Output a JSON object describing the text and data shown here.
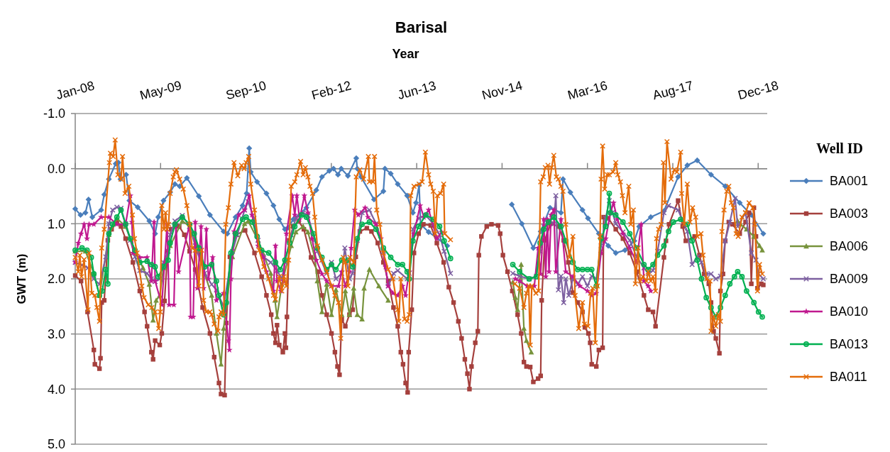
{
  "chart_data": {
    "type": "line",
    "title": "Barisal",
    "xlabel": "Year",
    "ylabel": "GWT (m)",
    "legend_title": "Well ID",
    "legend": "right",
    "grid": "y",
    "xlim": [
      "2008-01-01",
      "2019-02-05"
    ],
    "xticks": [
      {
        "value": "2008-01-01",
        "label": "Jan-08"
      },
      {
        "value": "2009-05-15",
        "label": "May-09"
      },
      {
        "value": "2010-09-27",
        "label": "Sep-10"
      },
      {
        "value": "2012-02-09",
        "label": "Feb-12"
      },
      {
        "value": "2013-06-23",
        "label": "Jun-13"
      },
      {
        "value": "2014-11-05",
        "label": "Nov-14"
      },
      {
        "value": "2016-03-19",
        "label": "Mar-16"
      },
      {
        "value": "2017-08-01",
        "label": "Aug-17"
      },
      {
        "value": "2018-12-14",
        "label": "Dec-18"
      }
    ],
    "ylim": [
      5,
      -1
    ],
    "yticks": [
      {
        "value": -1,
        "label": "-1.0"
      },
      {
        "value": 0,
        "label": "0.0"
      },
      {
        "value": 1,
        "label": "1.0"
      },
      {
        "value": 2,
        "label": "2.0"
      },
      {
        "value": 3,
        "label": "3.0"
      },
      {
        "value": 4,
        "label": "4.0"
      },
      {
        "value": 5,
        "label": "5.0"
      }
    ],
    "series": [
      {
        "name": "BA001",
        "color": "#4a7ebb",
        "marker": "diamond",
        "x": [
          "2008-01-01",
          "2008-02-01",
          "2008-03-01",
          "2008-03-19",
          "2008-04-10",
          "2008-06-01",
          "2008-06-19",
          "2008-07-16",
          "2008-08-25",
          "2008-09-10",
          "2008-09-22",
          "2008-10-25",
          "2008-11-13",
          "2009-01-01",
          "2009-03-10",
          "2009-04-13",
          "2009-05-01",
          "2009-06-01",
          "2009-07-10",
          "2009-08-07",
          "2009-09-04",
          "2009-10-16",
          "2009-12-25",
          "2010-02-28",
          "2010-05-19",
          "2010-06-10",
          "2010-07-28",
          "2010-09-07",
          "2010-10-01",
          "2010-10-16",
          "2010-10-25",
          "2010-12-01",
          "2011-01-25",
          "2011-03-07",
          "2011-04-10",
          "2011-05-13",
          "2011-06-01",
          "2011-07-01",
          "2011-09-16",
          "2011-11-13",
          "2011-12-16",
          "2012-01-28",
          "2012-02-22",
          "2012-03-19",
          "2012-04-07",
          "2012-05-16",
          "2012-07-04",
          "2012-07-10",
          "2012-08-01",
          "2012-10-16",
          "2012-12-10",
          "2012-12-19",
          "2013-01-22",
          "2013-03-04",
          "2013-04-28",
          "2013-06-01",
          "2013-06-19",
          "2013-07-07",
          "2013-07-16",
          "2013-09-01",
          "2013-12-19",
          "2014-06-01",
          "2015-01-01",
          "2015-03-01",
          "2015-05-07",
          "2015-06-19",
          "2015-08-13",
          "2015-10-16",
          "2015-10-28",
          "2015-12-10",
          "2016-02-19",
          "2016-03-22",
          "2016-05-25",
          "2016-07-19",
          "2016-09-01",
          "2016-10-25",
          "2016-12-19",
          "2017-01-16",
          "2017-03-25",
          "2017-06-10",
          "2017-09-01",
          "2017-10-25",
          "2017-12-22",
          "2018-03-13",
          "2018-06-04",
          "2018-08-28",
          "2018-11-04",
          "2019-01-13"
        ],
        "values": [
          0.73,
          0.84,
          0.8,
          0.56,
          0.88,
          0.75,
          0.47,
          0.19,
          -0.09,
          -0.11,
          0.19,
          0.11,
          0.58,
          0.7,
          0.95,
          1.18,
          0.88,
          0.58,
          0.43,
          0.28,
          0.32,
          0.17,
          0.5,
          0.84,
          1.14,
          1.18,
          0.88,
          0.67,
          0.45,
          -0.37,
          0.06,
          0.24,
          0.45,
          0.67,
          0.92,
          1.1,
          1.07,
          0.92,
          0.71,
          0.39,
          0.15,
          0.04,
          0.0,
          0.11,
          0.0,
          0.13,
          -0.19,
          0.0,
          0.15,
          0.56,
          0.41,
          0.0,
          0.09,
          0.28,
          0.49,
          0.8,
          0.62,
          0.3,
          1.01,
          1.15,
          1.4,
          null,
          0.65,
          1.0,
          1.44,
          1.14,
          0.71,
          0.8,
          0.19,
          0.43,
          0.75,
          0.9,
          1.18,
          1.4,
          1.53,
          1.48,
          1.31,
          1.05,
          0.88,
          0.77,
          0.15,
          -0.06,
          -0.15,
          0.11,
          0.32,
          0.62,
          0.84,
          1.18
        ]
      },
      {
        "name": "BA003",
        "color": "#a5403d",
        "marker": "square",
        "x": [
          "2008-01-01",
          "2008-02-04",
          "2008-03-13",
          "2008-04-19",
          "2008-04-25",
          "2008-05-22",
          "2008-05-28",
          "2008-06-04",
          "2008-06-19",
          "2008-07-10",
          "2008-08-01",
          "2008-09-01",
          "2008-09-25",
          "2008-10-22",
          "2008-12-04",
          "2009-01-13",
          "2009-02-10",
          "2009-02-25",
          "2009-03-22",
          "2009-04-01",
          "2009-04-13",
          "2009-05-10",
          "2009-05-22",
          "2009-06-07",
          "2009-06-25",
          "2009-07-16",
          "2009-09-01",
          "2009-10-01",
          "2009-11-01",
          "2009-12-04",
          "2010-01-16",
          "2010-02-28",
          "2010-03-25",
          "2010-04-22",
          "2010-05-04",
          "2010-05-25",
          "2010-06-04",
          "2010-06-25",
          "2010-08-01",
          "2010-09-22",
          "2010-11-16",
          "2010-12-28",
          "2011-01-25",
          "2011-02-22",
          "2011-03-07",
          "2011-03-19",
          "2011-03-28",
          "2011-04-10",
          "2011-05-01",
          "2011-05-13",
          "2011-05-19",
          "2011-05-25",
          "2011-06-07",
          "2011-07-01",
          "2011-08-01",
          "2011-09-01",
          "2011-10-13",
          "2011-11-22",
          "2011-12-16",
          "2012-01-13",
          "2012-02-10",
          "2012-03-01",
          "2012-03-16",
          "2012-03-28",
          "2012-04-10",
          "2012-05-01",
          "2012-05-25",
          "2012-06-13",
          "2012-07-01",
          "2012-07-25",
          "2012-09-04",
          "2012-10-01",
          "2012-11-07",
          "2012-12-10",
          "2013-01-07",
          "2013-02-07",
          "2013-03-04",
          "2013-03-22",
          "2013-04-04",
          "2013-04-19",
          "2013-05-01",
          "2013-05-07",
          "2013-05-25",
          "2013-06-07",
          "2013-07-04",
          "2013-08-01",
          "2013-09-13",
          "2013-10-19",
          "2013-11-28",
          "2013-12-28",
          "2014-01-25",
          "2014-02-22",
          "2014-03-13",
          "2014-04-01",
          "2014-04-16",
          "2014-04-28",
          "2014-05-10",
          "2014-06-01",
          "2014-06-16",
          "2014-06-22",
          "2014-07-07",
          "2014-08-07",
          "2014-09-04",
          "2014-10-13",
          "2014-10-25",
          "2014-11-10",
          "2014-12-07",
          "2015-01-04",
          "2015-02-04",
          "2015-02-25",
          "2015-03-13",
          "2015-03-28",
          "2015-04-19",
          "2015-05-07",
          "2015-06-04",
          "2015-06-19",
          "2015-06-25",
          "2015-07-13",
          "2015-08-16",
          "2015-10-01",
          "2015-11-01",
          "2015-11-28",
          "2015-12-25",
          "2016-01-22",
          "2016-02-19",
          "2016-03-04",
          "2016-03-25",
          "2016-04-04",
          "2016-04-13",
          "2016-05-10",
          "2016-05-25",
          "2016-06-16",
          "2016-06-22",
          "2016-07-19",
          "2016-09-01",
          "2016-10-13",
          "2016-11-22",
          "2017-01-01",
          "2017-02-13",
          "2017-03-10",
          "2017-04-07",
          "2017-04-22",
          "2017-06-10",
          "2017-06-22",
          "2017-07-10",
          "2017-09-01",
          "2017-09-28",
          "2017-10-16",
          "2017-12-07",
          "2018-01-04",
          "2018-02-01",
          "2018-02-28",
          "2018-03-13",
          "2018-03-28",
          "2018-04-10",
          "2018-05-01",
          "2018-05-07",
          "2018-05-22",
          "2018-06-04",
          "2018-06-25",
          "2018-07-16",
          "2018-08-28",
          "2018-10-01",
          "2018-10-22",
          "2018-11-04",
          "2018-11-19",
          "2018-12-01",
          "2018-12-10",
          "2019-01-01",
          "2019-01-13"
        ],
        "values": [
          1.94,
          2.04,
          2.6,
          3.29,
          3.55,
          3.63,
          3.44,
          2.43,
          2.39,
          1.3,
          1.1,
          0.97,
          1.05,
          1.27,
          1.7,
          2.22,
          2.6,
          2.86,
          3.33,
          3.46,
          3.12,
          3.2,
          2.99,
          2.4,
          1.5,
          1.1,
          1.05,
          1.2,
          1.5,
          1.83,
          2.52,
          2.99,
          3.42,
          3.89,
          4.09,
          4.11,
          2.8,
          1.6,
          1.2,
          1.12,
          1.53,
          1.96,
          2.3,
          2.65,
          2.99,
          3.16,
          2.84,
          3.2,
          3.33,
          2.99,
          3.25,
          2.69,
          1.3,
          1.05,
          0.95,
          1.1,
          1.61,
          1.87,
          2.3,
          2.65,
          2.99,
          3.33,
          3.59,
          3.74,
          2.73,
          2.86,
          2.65,
          2.56,
          1.6,
          1.14,
          1.08,
          1.14,
          1.35,
          1.7,
          2.04,
          2.52,
          2.86,
          3.33,
          3.55,
          3.89,
          4.06,
          3.33,
          2.56,
          1.53,
          1.18,
          1.01,
          1.03,
          1.35,
          1.7,
          2.15,
          2.43,
          2.77,
          3.08,
          3.46,
          3.72,
          4.0,
          3.59,
          3.16,
          2.95,
          1.57,
          1.23,
          1.05,
          1.01,
          1.03,
          1.18,
          1.57,
          1.87,
          2.22,
          2.65,
          2.99,
          3.51,
          3.59,
          3.6,
          3.87,
          3.81,
          3.76,
          2.39,
          1.3,
          1.0,
          1.05,
          1.3,
          1.7,
          2.25,
          2.43,
          2.6,
          2.88,
          2.99,
          3.16,
          3.55,
          3.59,
          3.29,
          3.25,
          0.88,
          0.9,
          1.1,
          1.27,
          1.53,
          1.87,
          2.3,
          2.56,
          2.6,
          2.86,
          1.61,
          1.31,
          1.01,
          0.58,
          1.05,
          1.31,
          1.23,
          1.57,
          1.91,
          2.09,
          2.43,
          2.95,
          3.08,
          3.35,
          2.22,
          1.91,
          1.31,
          0.97,
          1.01,
          1.18,
          0.97,
          0.8,
          2.09,
          0.71,
          1.23,
          2.17,
          2.09,
          2.11
        ]
      },
      {
        "name": "BA006",
        "color": "#77933c",
        "marker": "triangle",
        "x": [
          "2008-01-01",
          "2008-03-01",
          "2008-04-19",
          "2008-05-22",
          "2008-07-16",
          "2008-09-01",
          "2008-10-22",
          "2008-12-16",
          "2009-02-01",
          "2009-03-10",
          "2009-04-01",
          "2009-04-19",
          "2009-05-10",
          "2009-06-01",
          "2009-07-10",
          "2009-09-19",
          "2009-11-01",
          "2009-12-25",
          "2010-01-28",
          "2010-03-10",
          "2010-04-07",
          "2010-05-04",
          "2010-05-19",
          "2010-07-10",
          "2010-09-19",
          "2010-10-10",
          "2010-12-07",
          "2011-01-07",
          "2011-02-19",
          "2011-03-16",
          "2011-03-28",
          "2011-04-25",
          "2011-06-19",
          "2011-07-16",
          "2011-08-28",
          "2011-09-25",
          "2011-11-04",
          "2011-11-19",
          "2011-12-16",
          "2012-01-13",
          "2012-02-10",
          "2012-03-07",
          "2012-04-10",
          "2012-05-01",
          "2012-05-25",
          "2012-06-19",
          "2012-07-10",
          "2012-08-07",
          "2012-08-19",
          "2012-09-19",
          "2012-11-13",
          "2013-01-07",
          "2014-01-01",
          "2015-01-07",
          "2015-01-22",
          "2015-02-04",
          "2015-02-25",
          "2015-03-13",
          "2015-03-28",
          "2015-04-25",
          "2016-01-01",
          "2018-08-16",
          "2018-09-01",
          "2018-10-07",
          "2018-11-19",
          "2018-12-22",
          "2019-01-07"
        ],
        "values": [
          1.5,
          1.5,
          1.9,
          2.3,
          1.2,
          0.9,
          1.05,
          1.5,
          1.8,
          2.1,
          2.75,
          2.39,
          2.3,
          1.8,
          1.4,
          0.95,
          1.05,
          1.5,
          1.9,
          2.3,
          2.99,
          3.55,
          2.9,
          1.6,
          1.0,
          0.95,
          1.3,
          1.55,
          1.9,
          2.39,
          2.69,
          2.1,
          1.4,
          1.15,
          1.05,
          1.15,
          1.61,
          2.04,
          2.6,
          2.1,
          2.65,
          2.2,
          2.65,
          2.22,
          2.65,
          2.17,
          2.65,
          2.73,
          2.17,
          1.83,
          2.13,
          2.39,
          null,
          2.06,
          2.34,
          2.56,
          1.74,
          2.9,
          3.12,
          3.33,
          null,
          0.95,
          1.01,
          1.1,
          1.23,
          1.4,
          1.48
        ]
      },
      {
        "name": "BA009",
        "color": "#7d60a0",
        "marker": "cross",
        "x": [
          "2008-01-01",
          "2008-02-10",
          "2008-03-16",
          "2008-04-19",
          "2008-05-22",
          "2008-06-28",
          "2008-07-16",
          "2008-08-07",
          "2008-09-01",
          "2008-09-25",
          "2008-10-22",
          "2008-11-19",
          "2008-12-16",
          "2009-01-13",
          "2009-02-25",
          "2009-03-22",
          "2009-04-13",
          "2009-05-10",
          "2009-06-01",
          "2009-06-28",
          "2009-07-10",
          "2009-08-07",
          "2009-09-19",
          "2009-11-01",
          "2009-12-04",
          "2010-01-28",
          "2010-03-10",
          "2010-04-07",
          "2010-05-19",
          "2010-07-10",
          "2010-08-07",
          "2010-09-19",
          "2010-10-10",
          "2010-11-13",
          "2010-12-07",
          "2011-01-07",
          "2011-02-19",
          "2011-03-28",
          "2011-04-25",
          "2011-05-13",
          "2011-06-19",
          "2011-07-16",
          "2011-08-28",
          "2011-09-25",
          "2011-11-04",
          "2011-11-19",
          "2012-01-13",
          "2012-02-10",
          "2012-03-07",
          "2012-04-10",
          "2012-04-28",
          "2012-05-25",
          "2012-06-13",
          "2012-07-10",
          "2012-08-07",
          "2012-09-19",
          "2012-10-28",
          "2012-12-10",
          "2013-01-07",
          "2013-02-07",
          "2013-03-04",
          "2013-04-28",
          "2013-05-10",
          "2013-06-01",
          "2013-07-04",
          "2013-08-16",
          "2013-09-28",
          "2013-11-04",
          "2013-12-01",
          "2014-01-07",
          "2014-06-01",
          "2015-01-07",
          "2015-02-16",
          "2015-04-13",
          "2015-05-25",
          "2015-06-16",
          "2015-07-07",
          "2015-08-04",
          "2015-09-04",
          "2015-09-16",
          "2015-10-01",
          "2015-10-16",
          "2015-11-01",
          "2015-11-13",
          "2015-12-01",
          "2015-12-25",
          "2016-01-22",
          "2016-02-19",
          "2016-03-19",
          "2016-04-13",
          "2016-05-10",
          "2016-06-07",
          "2016-07-04",
          "2016-07-25",
          "2016-08-13",
          "2016-09-01",
          "2016-10-13",
          "2016-11-22",
          "2017-01-01",
          "2017-02-13",
          "2017-03-10",
          "2017-04-07",
          "2017-05-04",
          "2017-06-10",
          "2017-07-07",
          "2017-09-01",
          "2017-10-25",
          "2017-11-22",
          "2017-12-22",
          "2018-01-16",
          "2018-02-13",
          "2018-03-13",
          "2018-04-10",
          "2018-05-07",
          "2018-06-04",
          "2018-07-01",
          "2018-08-01",
          "2018-08-16",
          "2018-10-01",
          "2018-11-04",
          "2018-12-01",
          "2018-12-16",
          "2019-01-13"
        ],
        "values": [
          1.7,
          1.75,
          1.8,
          2.0,
          2.1,
          1.6,
          1.0,
          0.75,
          0.7,
          0.72,
          1.0,
          1.3,
          1.6,
          1.85,
          1.9,
          2.0,
          2.05,
          2.0,
          1.7,
          1.5,
          1.2,
          0.95,
          0.85,
          1.05,
          1.4,
          1.9,
          2.1,
          2.2,
          2.5,
          1.5,
          1.2,
          0.75,
          0.6,
          0.9,
          1.3,
          1.6,
          1.7,
          1.85,
          2.0,
          1.7,
          1.2,
          0.9,
          0.8,
          0.85,
          1.3,
          1.5,
          1.9,
          1.7,
          2.0,
          1.9,
          1.44,
          2.0,
          1.9,
          1.3,
          0.8,
          0.75,
          1.0,
          1.5,
          2.13,
          1.9,
          1.85,
          2.0,
          1.9,
          1.1,
          0.9,
          0.85,
          1.0,
          1.2,
          1.5,
          1.9,
          null,
          1.9,
          1.95,
          2.0,
          1.95,
          1.5,
          1.05,
          0.95,
          1.0,
          0.49,
          2.2,
          1.95,
          2.43,
          2.0,
          2.3,
          2.0,
          2.1,
          1.96,
          2.13,
          1.95,
          2.0,
          1.4,
          0.9,
          0.58,
          0.8,
          1.0,
          1.15,
          1.3,
          1.6,
          1.8,
          1.9,
          1.85,
          1.5,
          0.8,
          0.67,
          0.75,
          1.14,
          1.74,
          1.6,
          1.7,
          1.91,
          1.91,
          2.0,
          1.95,
          1.31,
          0.97,
          0.54,
          1.05,
          0.8,
          1.53,
          1.66,
          1.91,
          2.0
        ]
      },
      {
        "name": "BA010",
        "color": "#c0198f",
        "marker": "star",
        "x": [
          "2008-01-01",
          "2008-01-19",
          "2008-02-04",
          "2008-02-22",
          "2008-03-10",
          "2008-03-22",
          "2008-04-19",
          "2008-06-01",
          "2008-07-16",
          "2008-09-01",
          "2008-10-22",
          "2008-11-19",
          "2008-11-28",
          "2008-12-04",
          "2009-01-13",
          "2009-02-25",
          "2009-03-22",
          "2009-04-07",
          "2009-04-13",
          "2009-05-22",
          "2009-06-22",
          "2009-07-04",
          "2009-08-01",
          "2009-08-13",
          "2009-08-28",
          "2009-11-01",
          "2009-11-07",
          "2009-11-22",
          "2009-12-04",
          "2009-12-16",
          "2010-01-07",
          "2010-01-22",
          "2010-02-07",
          "2010-02-19",
          "2010-03-16",
          "2010-04-07",
          "2010-05-19",
          "2010-06-16",
          "2010-06-22",
          "2010-07-01",
          "2010-07-19",
          "2010-08-16",
          "2010-09-19",
          "2010-10-16",
          "2010-11-01",
          "2010-12-07",
          "2011-01-07",
          "2011-01-25",
          "2011-03-07",
          "2011-03-19",
          "2011-03-28",
          "2011-04-19",
          "2011-05-04",
          "2011-05-22",
          "2011-06-25",
          "2011-07-10",
          "2011-07-22",
          "2011-08-07",
          "2011-09-04",
          "2011-09-25",
          "2011-10-19",
          "2011-11-13",
          "2011-12-16",
          "2012-01-13",
          "2012-02-10",
          "2012-03-22",
          "2012-04-10",
          "2012-05-01",
          "2012-05-25",
          "2012-06-04",
          "2012-06-25",
          "2012-07-16",
          "2012-08-25",
          "2012-09-10",
          "2012-10-28",
          "2012-11-25",
          "2012-12-22",
          "2013-01-07",
          "2013-02-04",
          "2013-03-04",
          "2013-04-01",
          "2013-04-19",
          "2013-05-10",
          "2013-06-07",
          "2013-07-13",
          "2013-08-04",
          "2013-09-01",
          "2013-10-19",
          "2013-11-16",
          "2014-06-01",
          "2015-01-22",
          "2015-02-16",
          "2015-04-01",
          "2015-05-13",
          "2015-06-04",
          "2015-06-19",
          "2015-07-07",
          "2015-07-19",
          "2015-07-28",
          "2015-08-07",
          "2015-08-19",
          "2015-09-04",
          "2015-09-16",
          "2015-10-16",
          "2015-11-13",
          "2015-12-25",
          "2016-02-04",
          "2016-03-19",
          "2016-04-13",
          "2016-05-10",
          "2016-06-07",
          "2016-07-04",
          "2016-08-01",
          "2016-08-19",
          "2016-09-10",
          "2016-10-13",
          "2016-11-22",
          "2017-01-01",
          "2017-01-28",
          "2017-02-13",
          "2017-03-10",
          "2017-03-25"
        ],
        "values": [
          1.7,
          1.35,
          1.18,
          1.01,
          1.27,
          1.01,
          1.01,
          0.88,
          0.88,
          1.01,
          1.01,
          0.49,
          0.97,
          1.53,
          1.61,
          1.61,
          2.04,
          0.97,
          2.04,
          2.47,
          1.01,
          2.47,
          2.47,
          1.01,
          1.87,
          1.01,
          2.69,
          2.69,
          0.97,
          2.17,
          1.05,
          2.17,
          1.1,
          2.0,
          1.61,
          2.39,
          2.26,
          3.12,
          3.29,
          2.0,
          1.14,
          0.84,
          0.75,
          0.49,
          0.84,
          1.4,
          1.61,
          1.87,
          2.22,
          1.4,
          2.04,
          2.22,
          2.04,
          1.18,
          0.49,
          0.84,
          0.49,
          0.92,
          0.49,
          0.8,
          1.27,
          1.66,
          1.91,
          2.04,
          2.13,
          2.13,
          1.87,
          2.13,
          1.87,
          1.44,
          0.75,
          0.84,
          0.71,
          0.88,
          1.01,
          1.27,
          1.78,
          2.13,
          2.26,
          2.3,
          2.13,
          2.3,
          1.87,
          1.18,
          0.67,
          0.88,
          0.75,
          1.27,
          1.15,
          null,
          2.0,
          2.04,
          2.13,
          2.13,
          1.44,
          1.91,
          0.92,
          1.96,
          0.92,
          1.87,
          0.84,
          0.75,
          1.87,
          0.92,
          1.87,
          1.96,
          2.13,
          2.22,
          2.3,
          2.26,
          1.53,
          1.27,
          0.8,
          0.62,
          0.92,
          1.18,
          1.44,
          1.7,
          1.01,
          2.04,
          2.13,
          2.22
        ]
      },
      {
        "name": "BA013",
        "color": "#00b050",
        "marker": "circle",
        "x": [
          "2008-01-01",
          "2008-02-10",
          "2008-03-10",
          "2008-04-04",
          "2008-04-19",
          "2008-05-22",
          "2008-06-07",
          "2008-06-28",
          "2008-07-10",
          "2008-07-16",
          "2008-08-07",
          "2008-09-01",
          "2008-09-25",
          "2008-10-22",
          "2008-11-19",
          "2008-12-16",
          "2009-01-13",
          "2009-02-25",
          "2009-03-22",
          "2009-04-13",
          "2009-05-01",
          "2009-06-01",
          "2009-06-28",
          "2009-07-10",
          "2009-08-07",
          "2009-09-19",
          "2009-11-01",
          "2009-11-28",
          "2009-12-25",
          "2010-01-28",
          "2010-03-10",
          "2010-04-07",
          "2010-04-22",
          "2010-05-19",
          "2010-06-04",
          "2010-07-01",
          "2010-07-28",
          "2010-09-07",
          "2010-09-28",
          "2010-11-04",
          "2010-12-01",
          "2010-12-28",
          "2011-02-07",
          "2011-03-19",
          "2011-04-16",
          "2011-05-13",
          "2011-06-10",
          "2011-07-10",
          "2011-08-19",
          "2011-09-16",
          "2011-10-28",
          "2011-11-19",
          "2011-12-16",
          "2012-01-13",
          "2012-02-10",
          "2012-03-07",
          "2012-04-10",
          "2012-05-16",
          "2012-06-13",
          "2012-07-10",
          "2012-08-07",
          "2012-09-19",
          "2012-10-28",
          "2012-12-10",
          "2013-01-22",
          "2013-03-04",
          "2013-04-01",
          "2013-04-28",
          "2013-05-10",
          "2013-06-01",
          "2013-07-04",
          "2013-08-16",
          "2013-09-28",
          "2013-11-04",
          "2013-12-01",
          "2014-01-07",
          "2014-06-01",
          "2015-01-07",
          "2015-02-16",
          "2015-04-13",
          "2015-05-25",
          "2015-06-16",
          "2015-07-07",
          "2015-08-04",
          "2015-09-04",
          "2015-10-16",
          "2015-11-13",
          "2015-12-25",
          "2016-01-22",
          "2016-02-19",
          "2016-03-19",
          "2016-04-13",
          "2016-05-10",
          "2016-06-07",
          "2016-07-04",
          "2016-07-25",
          "2016-08-01",
          "2016-09-01",
          "2016-10-13",
          "2016-11-22",
          "2017-01-01",
          "2017-02-13",
          "2017-03-10",
          "2017-04-07",
          "2017-05-04",
          "2017-06-10",
          "2017-07-07",
          "2017-08-04",
          "2017-09-16",
          "2017-10-25",
          "2017-11-22",
          "2017-12-22",
          "2018-01-16",
          "2018-02-13",
          "2018-03-13",
          "2018-04-10",
          "2018-05-07",
          "2018-06-04",
          "2018-07-01",
          "2018-07-28",
          "2018-08-16",
          "2018-09-10",
          "2018-10-07",
          "2018-11-19",
          "2018-12-16",
          "2019-01-07"
        ],
        "values": [
          1.48,
          1.44,
          1.48,
          1.61,
          1.91,
          2.3,
          2.22,
          1.83,
          2.09,
          1.18,
          1.01,
          0.88,
          0.75,
          1.01,
          1.27,
          1.48,
          1.7,
          1.68,
          1.74,
          1.78,
          1.96,
          1.78,
          1.66,
          1.35,
          1.01,
          0.88,
          1.01,
          1.18,
          1.44,
          1.78,
          1.74,
          2.04,
          2.3,
          2.65,
          2.43,
          1.53,
          1.18,
          0.92,
          0.88,
          0.97,
          1.23,
          1.48,
          1.53,
          1.7,
          1.83,
          1.66,
          1.35,
          1.05,
          0.84,
          0.88,
          1.18,
          1.44,
          1.61,
          1.83,
          1.74,
          1.83,
          1.66,
          1.66,
          1.78,
          1.27,
          1.01,
          0.97,
          1.1,
          1.44,
          1.61,
          1.74,
          1.74,
          1.87,
          2.0,
          1.31,
          1.05,
          0.84,
          0.92,
          1.05,
          1.31,
          1.63,
          null,
          1.74,
          1.87,
          2.0,
          1.96,
          1.35,
          1.1,
          0.97,
          0.88,
          1.05,
          1.31,
          1.7,
          1.83,
          1.83,
          1.83,
          1.83,
          2.13,
          1.27,
          1.05,
          0.45,
          0.8,
          0.84,
          0.97,
          1.18,
          1.44,
          1.74,
          1.83,
          1.74,
          1.57,
          1.4,
          1.14,
          0.97,
          0.92,
          1.01,
          1.31,
          1.66,
          2.0,
          2.34,
          2.52,
          2.69,
          2.52,
          2.3,
          2.09,
          1.96,
          1.87,
          1.96,
          2.22,
          2.43,
          2.6,
          2.69
        ]
      },
      {
        "name": "BA011",
        "color": "#e46c0a",
        "marker": "cross",
        "x": [
          "2008-01-01",
          "2008-01-19",
          "2008-01-28",
          "2008-02-07",
          "2008-02-22",
          "2008-03-16",
          "2008-03-22",
          "2008-04-07",
          "2008-04-25",
          "2008-05-07",
          "2008-05-22",
          "2008-06-04",
          "2008-06-19",
          "2008-07-19",
          "2008-07-25",
          "2008-08-10",
          "2008-08-22",
          "2008-09-07",
          "2008-09-25",
          "2008-10-04",
          "2008-10-19",
          "2008-11-10",
          "2008-12-01",
          "2008-12-13",
          "2008-12-28",
          "2009-01-25",
          "2009-02-07",
          "2009-03-04",
          "2009-03-25",
          "2009-04-13",
          "2009-05-04",
          "2009-05-13",
          "2009-05-22",
          "2009-06-04",
          "2009-06-13",
          "2009-06-22",
          "2009-07-01",
          "2009-07-10",
          "2009-07-28",
          "2009-08-07",
          "2009-08-16",
          "2009-09-04",
          "2009-09-25",
          "2009-10-16",
          "2009-11-01",
          "2009-11-16",
          "2009-12-04",
          "2009-12-25",
          "2010-01-10",
          "2010-01-22",
          "2010-02-07",
          "2010-02-28",
          "2010-03-10",
          "2010-03-25",
          "2010-04-16",
          "2010-04-22",
          "2010-05-04",
          "2010-05-19",
          "2010-06-01",
          "2010-06-16",
          "2010-07-01",
          "2010-07-19",
          "2010-08-10",
          "2010-09-01",
          "2010-09-16",
          "2010-09-28",
          "2010-10-13",
          "2010-10-25",
          "2010-11-16",
          "2010-12-13",
          "2011-01-10",
          "2011-02-07",
          "2011-03-07",
          "2011-03-19",
          "2011-04-10",
          "2011-04-25",
          "2011-05-07",
          "2011-05-22",
          "2011-06-04",
          "2011-06-19",
          "2011-07-10",
          "2011-07-22",
          "2011-08-13",
          "2011-08-28",
          "2011-09-10",
          "2011-09-25",
          "2011-10-07",
          "2011-10-22",
          "2011-11-04",
          "2011-11-19",
          "2011-12-16",
          "2012-01-13",
          "2012-02-10",
          "2012-03-01",
          "2012-03-22",
          "2012-04-04",
          "2012-04-19",
          "2012-05-01",
          "2012-05-16",
          "2012-05-28",
          "2012-06-19",
          "2012-07-04",
          "2012-07-25",
          "2012-08-16",
          "2012-09-13",
          "2012-09-19",
          "2012-10-10",
          "2012-10-19",
          "2012-11-01",
          "2012-11-19",
          "2012-12-10",
          "2013-01-07",
          "2013-02-04",
          "2013-03-04",
          "2013-03-10",
          "2013-03-22",
          "2013-04-13",
          "2013-04-28",
          "2013-05-10",
          "2013-05-19",
          "2013-06-07",
          "2013-07-07",
          "2013-07-25",
          "2013-08-13",
          "2013-09-01",
          "2013-09-13",
          "2013-09-28",
          "2013-10-10",
          "2013-10-22",
          "2013-11-10",
          "2013-11-28",
          "2013-12-04",
          "2014-01-07",
          "2014-06-01",
          "2015-01-19",
          "2015-02-16",
          "2015-03-13",
          "2015-03-28",
          "2015-04-10",
          "2015-04-19",
          "2015-04-28",
          "2015-05-22",
          "2015-06-07",
          "2015-06-19",
          "2015-07-04",
          "2015-07-16",
          "2015-08-01",
          "2015-08-10",
          "2015-08-22",
          "2015-09-04",
          "2015-09-19",
          "2015-10-01",
          "2015-10-16",
          "2015-10-28",
          "2015-11-13",
          "2015-12-04",
          "2015-12-25",
          "2016-01-07",
          "2016-01-28",
          "2016-02-19",
          "2016-03-01",
          "2016-03-22",
          "2016-04-07",
          "2016-04-19",
          "2016-05-04",
          "2016-05-16",
          "2016-06-01",
          "2016-06-07",
          "2016-06-16",
          "2016-06-28",
          "2016-07-13",
          "2016-07-25",
          "2016-08-16",
          "2016-09-01",
          "2016-09-13",
          "2016-09-28",
          "2016-10-10",
          "2016-10-25",
          "2016-11-16",
          "2016-11-28",
          "2016-12-13",
          "2016-12-25",
          "2017-01-10",
          "2017-01-22",
          "2017-02-07",
          "2017-02-28",
          "2017-03-10",
          "2017-03-25",
          "2017-04-07",
          "2017-04-22",
          "2017-04-28",
          "2017-05-10",
          "2017-05-25",
          "2017-06-07",
          "2017-06-16",
          "2017-06-28",
          "2017-07-22",
          "2017-08-10",
          "2017-08-25",
          "2017-09-16",
          "2017-09-22",
          "2017-10-07",
          "2017-10-25",
          "2017-11-10",
          "2017-11-25",
          "2017-12-13",
          "2017-12-22",
          "2018-01-13",
          "2018-01-25",
          "2018-02-16",
          "2018-03-07",
          "2018-03-13",
          "2018-03-28",
          "2018-04-10",
          "2018-04-25",
          "2018-05-07",
          "2018-05-16",
          "2018-05-28",
          "2018-06-13",
          "2018-06-25",
          "2018-07-10",
          "2018-07-22",
          "2018-08-07",
          "2018-08-19",
          "2018-09-10",
          "2018-10-01",
          "2018-10-22",
          "2018-11-13",
          "2018-11-25",
          "2018-12-10",
          "2018-12-22",
          "2019-01-07"
        ],
        "values": [
          1.61,
          1.87,
          1.57,
          1.96,
          1.65,
          2.56,
          1.53,
          2.26,
          2.3,
          2.52,
          2.77,
          1.44,
          1.1,
          -0.11,
          -0.28,
          -0.22,
          -0.52,
          0.11,
          0.19,
          -0.22,
          0.45,
          0.32,
          0.84,
          1.27,
          1.53,
          2.13,
          2.34,
          2.47,
          2.52,
          2.6,
          2.9,
          2.6,
          0.67,
          1.1,
          0.8,
          1.1,
          1.01,
          0.45,
          0.15,
          0.06,
          0.02,
          0.19,
          0.37,
          0.67,
          1.01,
          1.44,
          1.48,
          2.13,
          1.48,
          2.39,
          2.6,
          2.6,
          2.65,
          2.82,
          2.95,
          2.69,
          2.6,
          2.65,
          1.01,
          0.71,
          0.28,
          -0.11,
          0.13,
          -0.06,
          0.0,
          -0.11,
          -0.22,
          0.28,
          0.75,
          1.48,
          1.78,
          2.0,
          2.3,
          2.37,
          1.96,
          2.22,
          1.96,
          2.13,
          1.66,
          0.32,
          0.24,
          0.11,
          -0.13,
          0.11,
          -0.02,
          0.15,
          0.32,
          0.45,
          0.88,
          1.4,
          1.66,
          1.87,
          2.13,
          2.3,
          2.43,
          3.08,
          1.61,
          1.7,
          2.13,
          1.61,
          1.7,
          0.15,
          0.02,
          0.19,
          -0.22,
          0.24,
          0.24,
          -0.22,
          0.75,
          1.01,
          1.53,
          1.83,
          2.0,
          2.56,
          2.77,
          2.0,
          2.73,
          2.77,
          2.65,
          0.49,
          0.32,
          0.28,
          0.24,
          -0.3,
          0.11,
          0.28,
          0.41,
          1.18,
          0.49,
          0.45,
          0.28,
          1.18,
          1.29,
          null,
          2.09,
          2.17,
          2.52,
          2.26,
          2.13,
          3.2,
          2.13,
          2.26,
          2.22,
          0.24,
          0.15,
          -0.02,
          -0.06,
          0.28,
          -0.02,
          -0.24,
          0.15,
          0.19,
          0.32,
          0.41,
          1.01,
          1.61,
          1.23,
          2.3,
          2.9,
          2.43,
          2.82,
          2.86,
          2.26,
          2.17,
          3.16,
          2.13,
          1.23,
          0.19,
          -0.41,
          0.37,
          0.11,
          0.11,
          0.06,
          -0.11,
          0.11,
          0.24,
          0.49,
          0.8,
          0.32,
          1.01,
          0.75,
          2.09,
          1.44,
          2.04,
          1.96,
          2.04,
          1.87,
          2.04,
          1.96,
          2.22,
          1.27,
          1.1,
          1.01,
          -0.11,
          0.62,
          -0.49,
          0.19,
          0.02,
          0.06,
          -0.3,
          0.45,
          1.01,
          0.28,
          0.97,
          0.71,
          0.88,
          1.23,
          1.18,
          1.57,
          2.0,
          2.04,
          2.95,
          2.69,
          2.86,
          2.65,
          2.77,
          1.14,
          0.75,
          0.41,
          0.32,
          0.62,
          0.71,
          1.18,
          1.23,
          0.88,
          0.8,
          0.62,
          0.71,
          1.01,
          2.22,
          1.74,
          1.91
        ]
      }
    ]
  }
}
